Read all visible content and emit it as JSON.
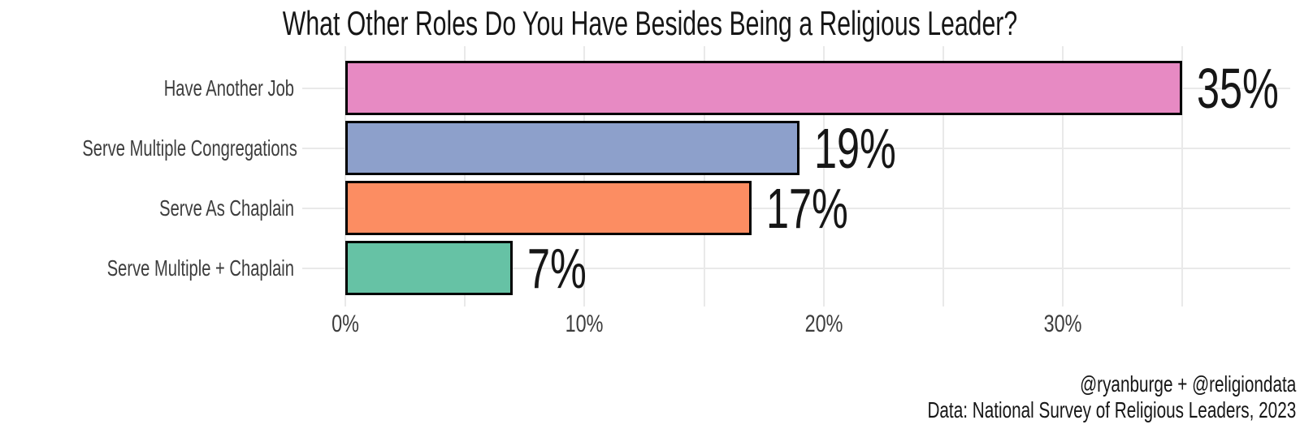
{
  "title": "What Other Roles Do You Have Besides Being a Religious Leader?",
  "caption": {
    "line1": "@ryanburge + @religiondata",
    "line2": "Data: National Survey of Religious Leaders, 2023"
  },
  "chart_data": {
    "type": "bar",
    "orientation": "horizontal",
    "title": "What Other Roles Do You Have Besides Being a Religious Leader?",
    "categories": [
      "Have Another Job",
      "Serve Multiple Congregations",
      "Serve As Chaplain",
      "Serve Multiple + Chaplain"
    ],
    "values": [
      35,
      19,
      17,
      7
    ],
    "value_labels": [
      "35%",
      "19%",
      "17%",
      "7%"
    ],
    "bar_colors": [
      "#e78ac3",
      "#8da0cb",
      "#fc8d62",
      "#66c2a5"
    ],
    "bar_border_color": "#000000",
    "x_tick_values": [
      0,
      10,
      20,
      30
    ],
    "x_tick_labels": [
      "0%",
      "10%",
      "20%",
      "30%"
    ],
    "xlim": [
      0,
      39.5
    ],
    "minor_grid_step_pct": 5,
    "grid": "on",
    "gridline_color": "#e9e9e9",
    "axis_text_color": "#3d3d3d",
    "legend": "none",
    "xlabel": "",
    "ylabel": ""
  }
}
